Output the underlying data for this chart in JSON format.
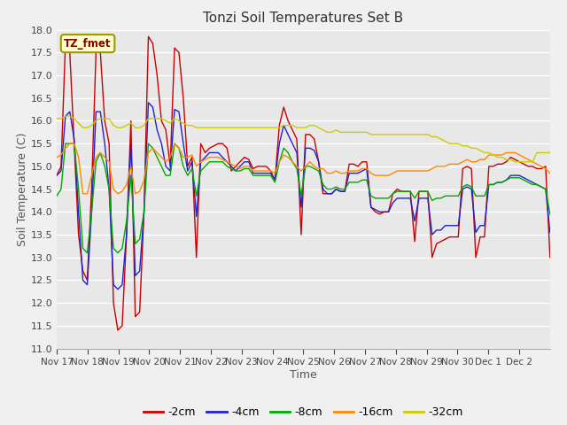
{
  "title": "Tonzi Soil Temperatures Set B",
  "xlabel": "Time",
  "ylabel": "Soil Temperature (C)",
  "ylim": [
    11.0,
    18.0
  ],
  "yticks": [
    11.0,
    11.5,
    12.0,
    12.5,
    13.0,
    13.5,
    14.0,
    14.5,
    15.0,
    15.5,
    16.0,
    16.5,
    17.0,
    17.5,
    18.0
  ],
  "label_box": "TZ_fmet",
  "series_colors": [
    "#cc0000",
    "#2222cc",
    "#00aa00",
    "#ff8800",
    "#cccc00"
  ],
  "series_labels": [
    "-2cm",
    "-4cm",
    "-8cm",
    "-16cm",
    "-32cm"
  ],
  "xtick_labels": [
    "Nov 17",
    "Nov 18",
    "Nov 19",
    "Nov 20",
    "Nov 21",
    "Nov 22",
    "Nov 23",
    "Nov 24",
    "Nov 25",
    "Nov 26",
    "Nov 27",
    "Nov 28",
    "Nov 29",
    "Nov 30",
    "Dec 1",
    "Dec 2"
  ],
  "bg_color": "#e8e8e8",
  "fig_color": "#f0f0f0",
  "series": {
    "m2cm": [
      14.8,
      15.0,
      17.7,
      17.5,
      15.5,
      13.5,
      12.7,
      12.5,
      14.5,
      17.5,
      17.5,
      16.0,
      15.5,
      12.0,
      11.4,
      11.5,
      13.5,
      16.0,
      11.7,
      11.8,
      14.0,
      17.85,
      17.7,
      17.0,
      16.0,
      15.8,
      15.0,
      17.6,
      17.5,
      16.5,
      15.0,
      15.2,
      13.0,
      15.5,
      15.3,
      15.4,
      15.45,
      15.5,
      15.5,
      15.4,
      14.9,
      15.0,
      15.1,
      15.2,
      15.15,
      14.95,
      15.0,
      15.0,
      15.0,
      14.9,
      14.7,
      15.9,
      16.3,
      16.0,
      15.8,
      15.6,
      13.5,
      15.7,
      15.7,
      15.6,
      15.1,
      14.4,
      14.4,
      14.4,
      14.5,
      14.45,
      14.45,
      15.05,
      15.05,
      15.0,
      15.1,
      15.1,
      14.1,
      14.0,
      13.95,
      14.0,
      14.0,
      14.4,
      14.5,
      14.45,
      14.45,
      14.45,
      13.35,
      14.45,
      14.45,
      14.45,
      13.0,
      13.3,
      13.35,
      13.4,
      13.45,
      13.45,
      13.45,
      14.95,
      15.0,
      14.95,
      13.0,
      13.45,
      13.45,
      15.0,
      15.0,
      15.05,
      15.05,
      15.1,
      15.2,
      15.15,
      15.1,
      15.05,
      15.0,
      15.0,
      14.95,
      14.95,
      15.0,
      13.0
    ],
    "m4cm": [
      14.8,
      14.9,
      16.1,
      16.2,
      15.6,
      14.0,
      12.5,
      12.4,
      14.0,
      16.2,
      16.2,
      15.5,
      14.5,
      12.4,
      12.3,
      12.4,
      13.5,
      15.5,
      12.6,
      12.7,
      14.0,
      16.4,
      16.3,
      15.8,
      15.5,
      15.0,
      14.9,
      16.25,
      16.2,
      15.5,
      14.9,
      15.1,
      13.9,
      15.1,
      15.2,
      15.3,
      15.3,
      15.3,
      15.2,
      15.1,
      15.0,
      14.9,
      15.0,
      15.1,
      15.1,
      14.85,
      14.85,
      14.85,
      14.85,
      14.85,
      14.7,
      15.5,
      15.9,
      15.7,
      15.5,
      15.3,
      14.1,
      15.4,
      15.4,
      15.35,
      15.1,
      14.5,
      14.4,
      14.4,
      14.5,
      14.45,
      14.45,
      14.85,
      14.85,
      14.85,
      14.9,
      14.95,
      14.1,
      14.05,
      14.0,
      14.0,
      14.0,
      14.2,
      14.3,
      14.3,
      14.3,
      14.3,
      13.8,
      14.3,
      14.3,
      14.3,
      13.5,
      13.6,
      13.6,
      13.7,
      13.7,
      13.7,
      13.7,
      14.5,
      14.55,
      14.5,
      13.55,
      13.7,
      13.7,
      14.6,
      14.6,
      14.65,
      14.65,
      14.7,
      14.8,
      14.8,
      14.8,
      14.75,
      14.7,
      14.65,
      14.6,
      14.55,
      14.5,
      13.55
    ],
    "m8cm": [
      14.35,
      14.5,
      15.5,
      15.5,
      15.5,
      14.5,
      13.2,
      13.1,
      14.0,
      15.1,
      15.3,
      15.0,
      14.5,
      13.2,
      13.1,
      13.2,
      13.8,
      14.8,
      13.3,
      13.4,
      14.0,
      15.5,
      15.4,
      15.2,
      15.0,
      14.8,
      14.8,
      15.5,
      15.4,
      15.0,
      14.8,
      14.95,
      14.35,
      14.9,
      15.0,
      15.1,
      15.1,
      15.1,
      15.1,
      15.0,
      14.95,
      14.9,
      14.9,
      14.95,
      14.95,
      14.8,
      14.8,
      14.8,
      14.8,
      14.8,
      14.65,
      15.1,
      15.4,
      15.3,
      15.1,
      14.95,
      14.35,
      15.0,
      15.0,
      14.95,
      14.9,
      14.6,
      14.5,
      14.5,
      14.55,
      14.5,
      14.5,
      14.65,
      14.65,
      14.65,
      14.7,
      14.7,
      14.35,
      14.3,
      14.3,
      14.3,
      14.3,
      14.4,
      14.45,
      14.45,
      14.45,
      14.45,
      14.3,
      14.45,
      14.45,
      14.45,
      14.25,
      14.3,
      14.3,
      14.35,
      14.35,
      14.35,
      14.35,
      14.55,
      14.6,
      14.55,
      14.35,
      14.35,
      14.35,
      14.6,
      14.6,
      14.65,
      14.65,
      14.7,
      14.75,
      14.75,
      14.75,
      14.7,
      14.65,
      14.6,
      14.6,
      14.55,
      14.5,
      13.95
    ],
    "m16cm": [
      15.2,
      15.25,
      15.4,
      15.5,
      15.5,
      15.2,
      14.4,
      14.4,
      14.8,
      15.2,
      15.3,
      15.2,
      15.1,
      14.5,
      14.4,
      14.45,
      14.6,
      15.0,
      14.4,
      14.45,
      14.7,
      15.3,
      15.4,
      15.3,
      15.2,
      15.1,
      15.2,
      15.5,
      15.4,
      15.2,
      15.2,
      15.25,
      15.0,
      15.1,
      15.15,
      15.2,
      15.2,
      15.2,
      15.15,
      15.1,
      15.05,
      15.0,
      14.95,
      15.0,
      15.0,
      14.9,
      14.9,
      14.9,
      14.9,
      14.9,
      14.85,
      15.1,
      15.25,
      15.2,
      15.1,
      15.0,
      14.9,
      15.0,
      15.1,
      15.0,
      14.95,
      14.95,
      14.85,
      14.85,
      14.9,
      14.85,
      14.85,
      14.9,
      14.9,
      14.9,
      14.95,
      14.95,
      14.85,
      14.8,
      14.8,
      14.8,
      14.8,
      14.85,
      14.9,
      14.9,
      14.9,
      14.9,
      14.9,
      14.9,
      14.9,
      14.9,
      14.95,
      15.0,
      15.0,
      15.0,
      15.05,
      15.05,
      15.05,
      15.1,
      15.15,
      15.1,
      15.1,
      15.15,
      15.15,
      15.25,
      15.25,
      15.25,
      15.25,
      15.3,
      15.3,
      15.3,
      15.25,
      15.2,
      15.15,
      15.1,
      15.05,
      15.0,
      14.95,
      14.85
    ],
    "m32cm": [
      16.05,
      16.05,
      16.1,
      16.1,
      16.05,
      15.95,
      15.85,
      15.85,
      15.9,
      16.0,
      16.05,
      16.05,
      16.05,
      15.9,
      15.85,
      15.85,
      15.9,
      15.95,
      15.85,
      15.85,
      15.9,
      16.05,
      16.05,
      16.05,
      16.05,
      16.0,
      15.95,
      16.05,
      16.0,
      15.95,
      15.9,
      15.9,
      15.85,
      15.85,
      15.85,
      15.85,
      15.85,
      15.85,
      15.85,
      15.85,
      15.85,
      15.85,
      15.85,
      15.85,
      15.85,
      15.85,
      15.85,
      15.85,
      15.85,
      15.85,
      15.85,
      15.85,
      15.9,
      15.9,
      15.9,
      15.85,
      15.85,
      15.85,
      15.9,
      15.9,
      15.85,
      15.8,
      15.75,
      15.75,
      15.8,
      15.75,
      15.75,
      15.75,
      15.75,
      15.75,
      15.75,
      15.75,
      15.7,
      15.7,
      15.7,
      15.7,
      15.7,
      15.7,
      15.7,
      15.7,
      15.7,
      15.7,
      15.7,
      15.7,
      15.7,
      15.7,
      15.65,
      15.65,
      15.6,
      15.55,
      15.5,
      15.5,
      15.5,
      15.45,
      15.45,
      15.4,
      15.4,
      15.35,
      15.3,
      15.3,
      15.25,
      15.2,
      15.2,
      15.15,
      15.15,
      15.1,
      15.1,
      15.1,
      15.1,
      15.1,
      15.3,
      15.3,
      15.3,
      15.3
    ]
  }
}
